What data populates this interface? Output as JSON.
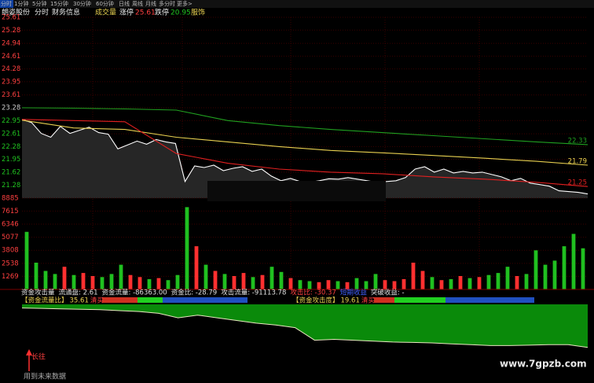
{
  "tabs": [
    "分时",
    "1分钟",
    "5分钟",
    "15分钟",
    "30分钟",
    "60分钟",
    "日线",
    "周线",
    "月线",
    "多分时",
    "更多>"
  ],
  "header": {
    "stock": "朗姿股份",
    "view": "分时",
    "finance": "财务信息",
    "volume": "成交量",
    "limit_up_label": "涨停",
    "limit_up": "25.61",
    "limit_down_label": "跌停",
    "limit_down": "20.95",
    "sector": "服饰"
  },
  "chart_data": [
    {
      "type": "line",
      "ylim": [
        20.95,
        25.61
      ],
      "yticks": [
        25.61,
        25.28,
        24.94,
        24.61,
        24.28,
        23.95,
        23.61,
        23.28,
        22.95,
        22.61,
        22.28,
        21.95,
        21.62,
        21.28
      ],
      "reference": 23.28,
      "up_color": "#ff4040",
      "down_color": "#20c020",
      "grid": true,
      "series": [
        {
          "color": "#ffffff",
          "fill": "#262626",
          "values": [
            22.98,
            22.9,
            22.62,
            22.52,
            22.8,
            22.62,
            22.7,
            22.78,
            22.64,
            22.6,
            22.22,
            22.32,
            22.42,
            22.34,
            22.46,
            22.4,
            22.36,
            21.38,
            21.78,
            21.74,
            21.8,
            21.66,
            21.72,
            21.76,
            21.64,
            21.7,
            21.52,
            21.4,
            21.46,
            21.38,
            21.36,
            21.4,
            21.45,
            21.44,
            21.48,
            21.44,
            21.4,
            21.36,
            21.38,
            21.4,
            21.48,
            21.7,
            21.76,
            21.62,
            21.7,
            21.6,
            21.64,
            21.6,
            21.62,
            21.56,
            21.5,
            21.4,
            21.46,
            21.34,
            21.3,
            21.26,
            21.14,
            21.12,
            21.1,
            21.06
          ]
        },
        {
          "color": "#e8d050",
          "end_label": "21.79",
          "values": [
            22.96,
            22.76,
            22.72,
            22.52,
            22.4,
            22.28,
            22.18,
            22.12,
            22.05,
            21.98,
            21.9,
            21.8
          ]
        },
        {
          "color": "#e02020",
          "end_label": "21.25",
          "values": [
            22.98,
            22.95,
            22.92,
            22.1,
            21.85,
            21.7,
            21.62,
            21.58,
            21.5,
            21.44,
            21.36,
            21.25
          ]
        },
        {
          "color": "#20a020",
          "end_label": "22.33",
          "values": [
            23.28,
            23.27,
            23.25,
            23.22,
            22.95,
            22.82,
            22.72,
            22.64,
            22.56,
            22.48,
            22.4,
            22.33
          ]
        }
      ]
    },
    {
      "type": "bar",
      "ylim": [
        0,
        9330
      ],
      "yticks": [
        8885,
        7615,
        6346,
        5077,
        3808,
        2538,
        1269
      ],
      "tick_color": "#ff4040",
      "up_color": "#ff3030",
      "down_color": "#20c020",
      "grid": true,
      "values": [
        5600,
        2600,
        1800,
        1500,
        2200,
        1400,
        1600,
        1300,
        1200,
        1500,
        2400,
        1400,
        1200,
        1000,
        1100,
        900,
        1400,
        8000,
        4200,
        2400,
        1800,
        1500,
        1300,
        1600,
        1200,
        1400,
        2200,
        1700,
        1100,
        900,
        800,
        700,
        900,
        800,
        700,
        1100,
        800,
        1500,
        900,
        800,
        1000,
        2600,
        1800,
        1200,
        900,
        1000,
        1300,
        1100,
        1200,
        1400,
        1600,
        2200,
        1300,
        1500,
        3800,
        2400,
        2800,
        4200,
        5400,
        4000
      ]
    },
    {
      "type": "area",
      "ylim": [
        -100,
        0
      ],
      "color": "#0a8a0a",
      "line_color": "#e8e8c0",
      "values": [
        -8,
        -9,
        -10,
        -11,
        -12,
        -14,
        -16,
        -20,
        -30,
        -24,
        -30,
        -36,
        -42,
        -46,
        -52,
        -80,
        -78,
        -80,
        -82,
        -84,
        -85,
        -86,
        -88,
        -90,
        -92,
        -92,
        -91,
        -90,
        -90,
        -96
      ]
    }
  ],
  "indicator_header": [
    {
      "text": "资金攻击量",
      "color": "#e0e0e0"
    },
    {
      "text": "流通盘: 2.61",
      "color": "#e0e0e0"
    },
    {
      "text": "资金流量: -86363.00",
      "color": "#e0e0e0"
    },
    {
      "text": "资金比: -28.79",
      "color": "#e0e0e0"
    },
    {
      "text": "攻击流量: -91113.78",
      "color": "#e0e0e0"
    },
    {
      "text": "攻击比: -30.37",
      "color": "#ff4040"
    },
    {
      "text": "短期收益",
      "color": "#4060ff"
    },
    {
      "text": "突破收益: -",
      "color": "#e0e0e0"
    }
  ],
  "indicator_tags": [
    {
      "label": "【资金流量比】",
      "value": "35.61",
      "tag": "清买"
    },
    {
      "label": "【资金攻击度】",
      "value": "19.61",
      "tag": "清买"
    }
  ],
  "footer": {
    "signal": "长往",
    "note": "用到未来数据",
    "watermark": "www.7gpzb.com"
  }
}
